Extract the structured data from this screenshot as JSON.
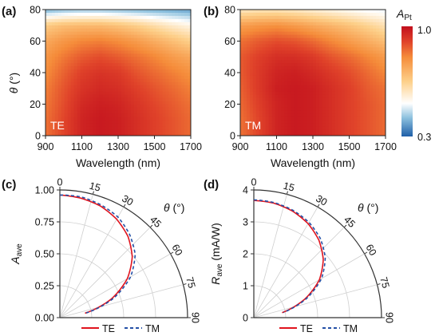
{
  "panel_labels": [
    "(a)",
    "(b)",
    "(c)",
    "(d)"
  ],
  "colorbar": {
    "label_main": "A",
    "label_sub": "Pt",
    "max_label": "1.0",
    "min_label": "0.3",
    "vmin": 0.3,
    "vmax": 1.0,
    "stops": [
      "#1f5fa8",
      "#8dc1de",
      "#ffffff",
      "#fdd08a",
      "#f58c3a",
      "#e0432a",
      "#c20f1d"
    ]
  },
  "chart_data": [
    {
      "type": "heatmap",
      "panel": "(a)",
      "inset_label": "TE",
      "xlabel": "Wavelength (nm)",
      "ylabel_symbol": "θ",
      "ylabel_unit": " (°)",
      "x_ticks": [
        "900",
        "1100",
        "1300",
        "1500",
        "1700"
      ],
      "y_ticks": [
        "0",
        "20",
        "40",
        "60",
        "80"
      ],
      "xlim": [
        900,
        1700
      ],
      "ylim": [
        0,
        80
      ],
      "wavelengths": [
        900,
        1000,
        1100,
        1200,
        1300,
        1400,
        1500,
        1600,
        1700
      ],
      "angles": [
        0,
        10,
        20,
        30,
        40,
        50,
        60,
        70,
        80
      ],
      "z": [
        [
          0.84,
          0.9,
          0.96,
          0.98,
          0.97,
          0.94,
          0.91,
          0.88,
          0.85
        ],
        [
          0.84,
          0.9,
          0.96,
          0.98,
          0.97,
          0.94,
          0.91,
          0.88,
          0.85
        ],
        [
          0.83,
          0.89,
          0.95,
          0.97,
          0.96,
          0.93,
          0.9,
          0.87,
          0.84
        ],
        [
          0.82,
          0.88,
          0.93,
          0.95,
          0.94,
          0.91,
          0.88,
          0.85,
          0.82
        ],
        [
          0.8,
          0.86,
          0.91,
          0.93,
          0.92,
          0.88,
          0.85,
          0.82,
          0.79
        ],
        [
          0.78,
          0.83,
          0.87,
          0.89,
          0.87,
          0.84,
          0.81,
          0.77,
          0.74
        ],
        [
          0.74,
          0.78,
          0.81,
          0.82,
          0.8,
          0.77,
          0.73,
          0.69,
          0.65
        ],
        [
          0.66,
          0.69,
          0.7,
          0.7,
          0.68,
          0.65,
          0.61,
          0.57,
          0.54
        ],
        [
          0.4,
          0.42,
          0.43,
          0.43,
          0.42,
          0.41,
          0.4,
          0.39,
          0.38
        ]
      ]
    },
    {
      "type": "heatmap",
      "panel": "(b)",
      "inset_label": "TM",
      "xlabel": "Wavelength (nm)",
      "x_ticks": [
        "900",
        "1100",
        "1300",
        "1500",
        "1700"
      ],
      "y_ticks": [
        "0",
        "20",
        "40",
        "60",
        "80"
      ],
      "xlim": [
        900,
        1700
      ],
      "ylim": [
        0,
        80
      ],
      "wavelengths": [
        900,
        1000,
        1100,
        1200,
        1300,
        1400,
        1500,
        1600,
        1700
      ],
      "angles": [
        0,
        10,
        20,
        30,
        40,
        50,
        60,
        70,
        80
      ],
      "z": [
        [
          0.84,
          0.9,
          0.96,
          0.98,
          0.97,
          0.94,
          0.91,
          0.88,
          0.85
        ],
        [
          0.84,
          0.9,
          0.96,
          0.98,
          0.97,
          0.94,
          0.91,
          0.88,
          0.85
        ],
        [
          0.85,
          0.91,
          0.96,
          0.98,
          0.97,
          0.94,
          0.91,
          0.88,
          0.85
        ],
        [
          0.86,
          0.92,
          0.97,
          0.98,
          0.97,
          0.94,
          0.91,
          0.87,
          0.84
        ],
        [
          0.87,
          0.92,
          0.96,
          0.97,
          0.95,
          0.92,
          0.89,
          0.85,
          0.81
        ],
        [
          0.87,
          0.91,
          0.94,
          0.94,
          0.92,
          0.88,
          0.85,
          0.81,
          0.77
        ],
        [
          0.84,
          0.87,
          0.89,
          0.88,
          0.85,
          0.81,
          0.77,
          0.73,
          0.69
        ],
        [
          0.76,
          0.78,
          0.79,
          0.77,
          0.74,
          0.71,
          0.68,
          0.64,
          0.6
        ],
        [
          0.58,
          0.59,
          0.59,
          0.58,
          0.56,
          0.54,
          0.52,
          0.5,
          0.49
        ]
      ]
    },
    {
      "type": "line",
      "panel": "(c)",
      "polar": true,
      "ylabel_main": "A",
      "ylabel_sub": "ave",
      "theta_symbol": "θ",
      "theta_unit": " (°)",
      "r_ticks": [
        "0.00",
        "0.25",
        "0.50",
        "0.75",
        "1.00"
      ],
      "rlim": [
        0,
        1.0
      ],
      "theta_ticks": [
        "0",
        "15",
        "30",
        "45",
        "60",
        "75",
        "90"
      ],
      "theta": [
        0,
        10,
        20,
        30,
        40,
        50,
        60,
        70,
        80
      ],
      "series": [
        {
          "name": "TE",
          "color": "#e0141e",
          "dash": "solid",
          "values": [
            0.96,
            0.95,
            0.93,
            0.89,
            0.83,
            0.74,
            0.61,
            0.43,
            0.2
          ]
        },
        {
          "name": "TM",
          "color": "#2450a6",
          "dash": "dashed",
          "values": [
            0.96,
            0.96,
            0.94,
            0.91,
            0.85,
            0.77,
            0.64,
            0.45,
            0.21
          ]
        }
      ],
      "legend": [
        "TE",
        "TM"
      ]
    },
    {
      "type": "line",
      "panel": "(d)",
      "polar": true,
      "ylabel_main": "R",
      "ylabel_sub": "ave",
      "ylabel_unit": " (mA/W)",
      "theta_symbol": "θ",
      "theta_unit": " (°)",
      "r_ticks": [
        "0",
        "1",
        "2",
        "3",
        "4"
      ],
      "rlim": [
        0,
        4
      ],
      "theta_ticks": [
        "0",
        "15",
        "30",
        "45",
        "60",
        "75",
        "90"
      ],
      "theta": [
        0,
        10,
        20,
        30,
        40,
        50,
        60,
        70,
        80
      ],
      "series": [
        {
          "name": "TE",
          "color": "#e0141e",
          "dash": "solid",
          "values": [
            3.67,
            3.64,
            3.55,
            3.4,
            3.17,
            2.84,
            2.37,
            1.7,
            0.9
          ]
        },
        {
          "name": "TM",
          "color": "#2450a6",
          "dash": "dashed",
          "values": [
            3.69,
            3.66,
            3.58,
            3.45,
            3.24,
            2.92,
            2.45,
            1.76,
            0.94
          ]
        }
      ],
      "legend": [
        "TE",
        "TM"
      ]
    }
  ]
}
